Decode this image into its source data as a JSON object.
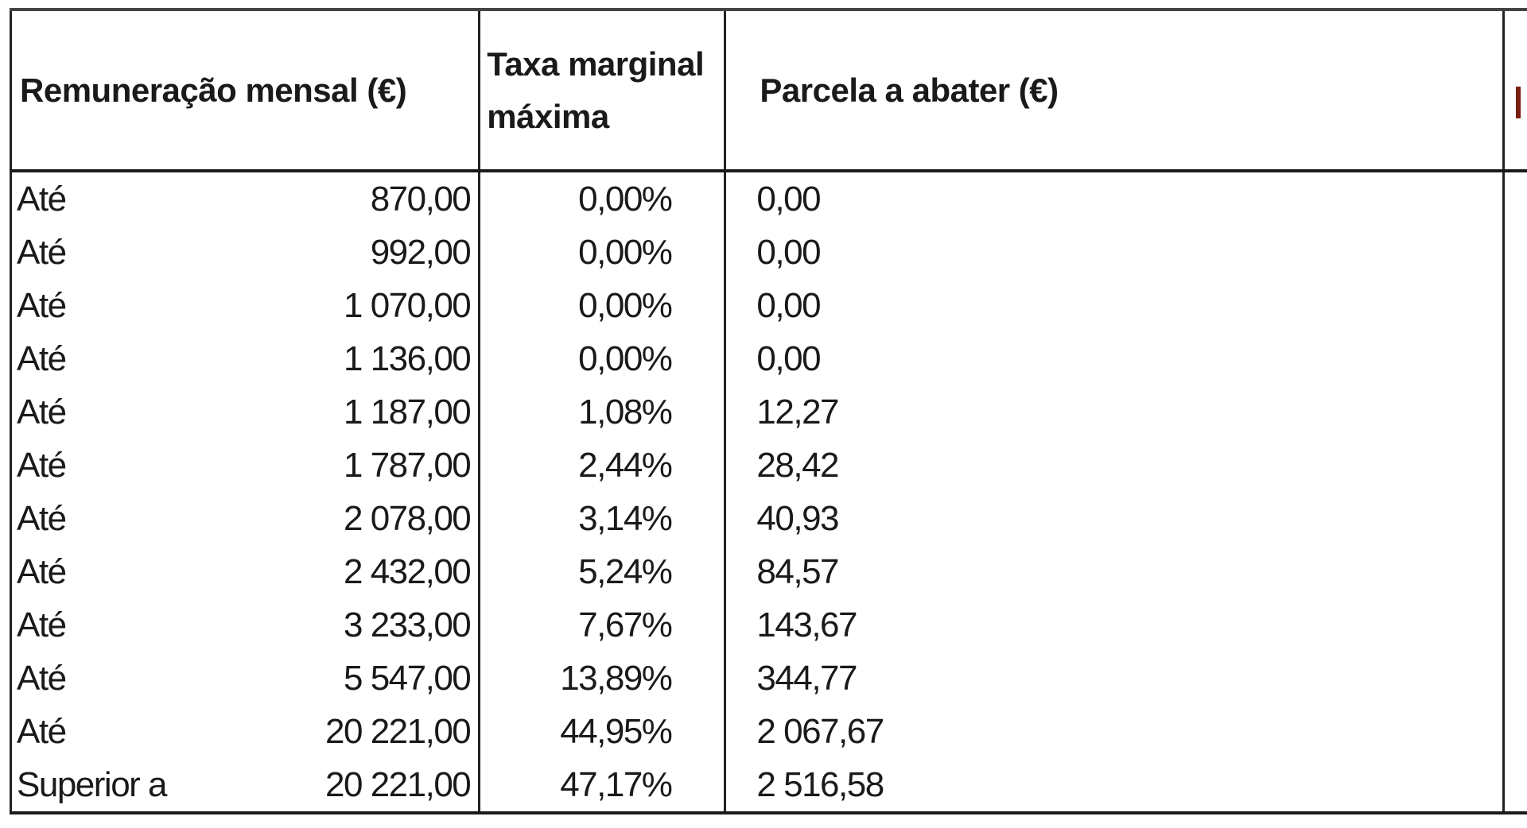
{
  "table": {
    "headers": {
      "remuneracao": "Remuneração mensal (€)",
      "taxa": "Taxa marginal máxima",
      "parcela": "Parcela a abater (€)",
      "clipped_column": ""
    },
    "rows": [
      {
        "label": "Até",
        "remuneracao": "870,00",
        "taxa": "0,00%",
        "parcela": "0,00"
      },
      {
        "label": "Até",
        "remuneracao": "992,00",
        "taxa": "0,00%",
        "parcela": "0,00"
      },
      {
        "label": "Até",
        "remuneracao": "1 070,00",
        "taxa": "0,00%",
        "parcela": "0,00"
      },
      {
        "label": "Até",
        "remuneracao": "1 136,00",
        "taxa": "0,00%",
        "parcela": "0,00"
      },
      {
        "label": "Até",
        "remuneracao": "1 187,00",
        "taxa": "1,08%",
        "parcela": "12,27"
      },
      {
        "label": "Até",
        "remuneracao": "1 787,00",
        "taxa": "2,44%",
        "parcela": "28,42"
      },
      {
        "label": "Até",
        "remuneracao": "2 078,00",
        "taxa": "3,14%",
        "parcela": "40,93"
      },
      {
        "label": "Até",
        "remuneracao": "2 432,00",
        "taxa": "5,24%",
        "parcela": "84,57"
      },
      {
        "label": "Até",
        "remuneracao": "3 233,00",
        "taxa": "7,67%",
        "parcela": "143,67"
      },
      {
        "label": "Até",
        "remuneracao": "5 547,00",
        "taxa": "13,89%",
        "parcela": "344,77"
      },
      {
        "label": "Até",
        "remuneracao": "20 221,00",
        "taxa": "44,95%",
        "parcela": "2 067,67"
      },
      {
        "label": "Superior a",
        "remuneracao": "20 221,00",
        "taxa": "47,17%",
        "parcela": "2 516,58"
      }
    ]
  },
  "colors": {
    "text": "#1a1a1a",
    "border": "#222222",
    "background": "#ffffff",
    "clipped_header_accent": "#7a1f10"
  }
}
